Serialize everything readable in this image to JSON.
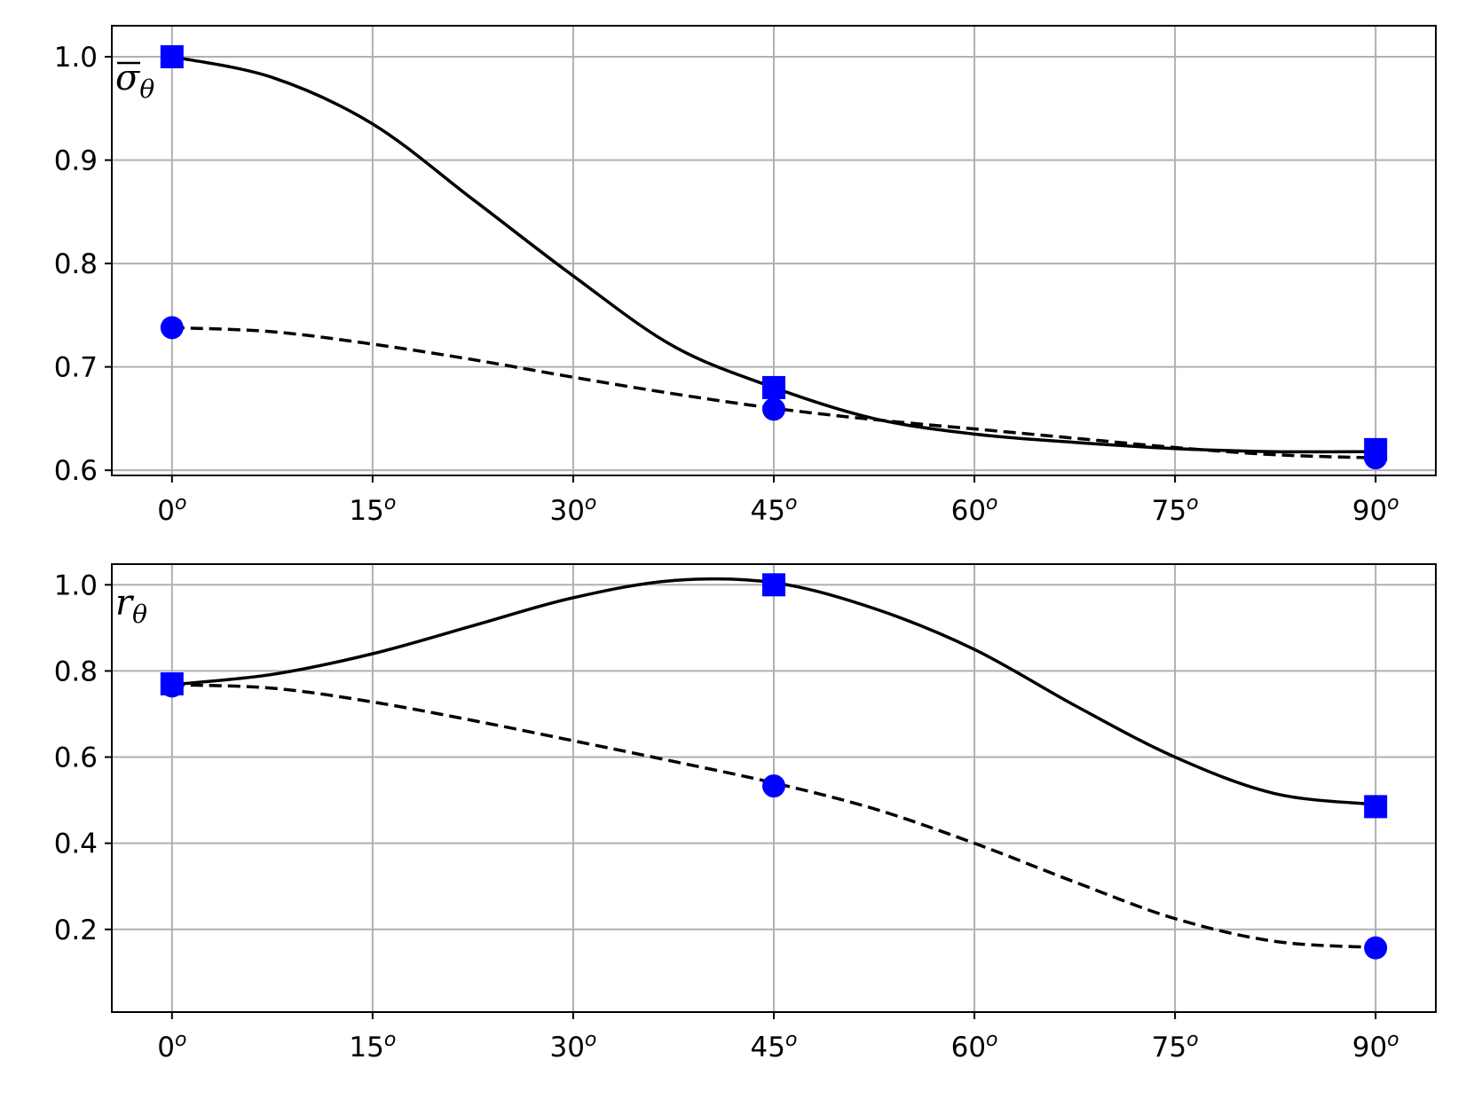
{
  "chart_data": [
    {
      "type": "line",
      "panel_label": "σθ",
      "panel_label_base": "σ",
      "panel_label_sub": "θ",
      "panel_label_overline": true,
      "xlabel": "",
      "ylabel": "",
      "x_ticks": [
        0,
        15,
        30,
        45,
        60,
        75,
        90
      ],
      "x_tick_labels": [
        "0",
        "15",
        "30",
        "45",
        "60",
        "75",
        "90"
      ],
      "x_tick_suffix": "o",
      "xlim": [
        -4.5,
        94.5
      ],
      "y_ticks": [
        0.6,
        0.7,
        0.8,
        0.9,
        1.0
      ],
      "y_tick_labels": [
        "0.6",
        "0.7",
        "0.8",
        "0.9",
        "1.0"
      ],
      "ylim": [
        0.595,
        1.03
      ],
      "grid": true,
      "series": [
        {
          "style": "solid",
          "marker": "square",
          "color": "#000000",
          "marker_color": "#0000ff",
          "x": [
            0,
            7.5,
            15,
            22.5,
            30,
            37.5,
            45,
            52.5,
            60,
            67.5,
            75,
            82.5,
            90
          ],
          "y": [
            1.0,
            0.98,
            0.935,
            0.862,
            0.788,
            0.72,
            0.68,
            0.65,
            0.635,
            0.627,
            0.621,
            0.618,
            0.618
          ],
          "marker_x": [
            0,
            45,
            90
          ],
          "marker_y": [
            1.0,
            0.68,
            0.62
          ]
        },
        {
          "style": "dashed",
          "marker": "circle",
          "color": "#000000",
          "marker_color": "#0000ff",
          "x": [
            0,
            7.5,
            15,
            22.5,
            30,
            37.5,
            45,
            52.5,
            60,
            67.5,
            75,
            82.5,
            90
          ],
          "y": [
            0.738,
            0.734,
            0.722,
            0.707,
            0.69,
            0.674,
            0.66,
            0.649,
            0.64,
            0.631,
            0.622,
            0.615,
            0.612
          ],
          "marker_x": [
            0,
            45,
            90
          ],
          "marker_y": [
            0.738,
            0.659,
            0.612
          ]
        }
      ]
    },
    {
      "type": "line",
      "panel_label": "rθ",
      "panel_label_base": "r",
      "panel_label_sub": "θ",
      "panel_label_overline": false,
      "xlabel": "",
      "ylabel": "",
      "x_ticks": [
        0,
        15,
        30,
        45,
        60,
        75,
        90
      ],
      "x_tick_labels": [
        "0",
        "15",
        "30",
        "45",
        "60",
        "75",
        "90"
      ],
      "x_tick_suffix": "o",
      "xlim": [
        -4.5,
        94.5
      ],
      "y_ticks": [
        0.2,
        0.4,
        0.6,
        0.8,
        1.0
      ],
      "y_tick_labels": [
        "0.2",
        "0.4",
        "0.6",
        "0.8",
        "1.0"
      ],
      "ylim": [
        0.008,
        1.048
      ],
      "grid": true,
      "series": [
        {
          "style": "solid",
          "marker": "square",
          "color": "#000000",
          "marker_color": "#0000ff",
          "x": [
            0,
            7.5,
            15,
            22.5,
            30,
            37.5,
            45,
            52.5,
            60,
            67.5,
            75,
            82.5,
            90
          ],
          "y": [
            0.768,
            0.792,
            0.84,
            0.905,
            0.97,
            1.01,
            1.005,
            0.945,
            0.85,
            0.72,
            0.6,
            0.515,
            0.49
          ],
          "marker_x": [
            0,
            45,
            90
          ],
          "marker_y": [
            0.77,
            1.0,
            0.485
          ]
        },
        {
          "style": "dashed",
          "marker": "circle",
          "color": "#000000",
          "marker_color": "#0000ff",
          "x": [
            0,
            7.5,
            15,
            22.5,
            30,
            37.5,
            45,
            52.5,
            60,
            67.5,
            75,
            82.5,
            90
          ],
          "y": [
            0.768,
            0.76,
            0.728,
            0.685,
            0.638,
            0.59,
            0.54,
            0.48,
            0.4,
            0.31,
            0.225,
            0.172,
            0.158
          ],
          "marker_x": [
            0,
            45,
            90
          ],
          "marker_y": [
            0.765,
            0.533,
            0.157
          ]
        }
      ]
    }
  ]
}
